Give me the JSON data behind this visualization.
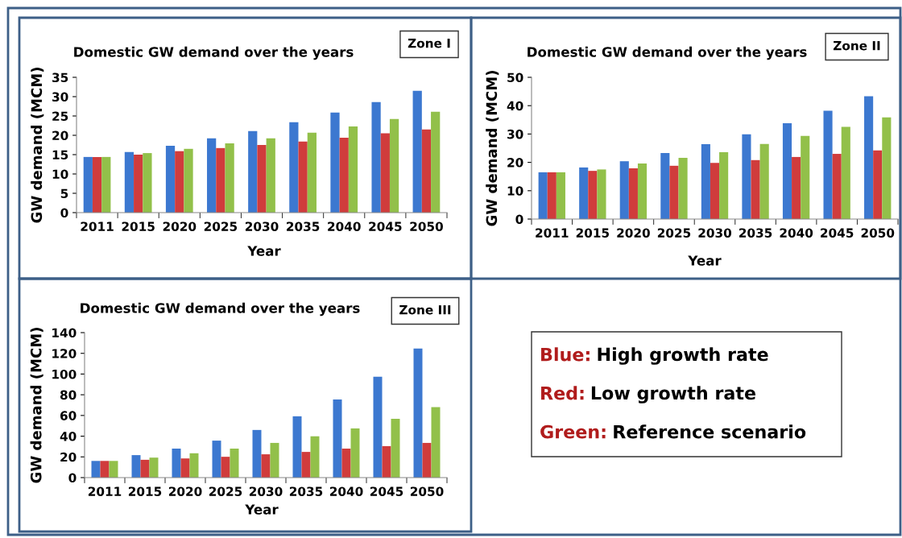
{
  "chart_data": [
    {
      "type": "bar",
      "title": "Domestic GW demand over the years",
      "annotations": [
        "Zone I"
      ],
      "xlabel": "Year",
      "ylabel": "GW demand (MCM)",
      "categories": [
        "2011",
        "2015",
        "2020",
        "2025",
        "2030",
        "2035",
        "2040",
        "2045",
        "2050"
      ],
      "series": [
        {
          "color": "#3c78d0",
          "values": [
            14.4,
            15.7,
            17.3,
            19.2,
            21.1,
            23.4,
            25.9,
            28.6,
            31.5
          ]
        },
        {
          "color": "#d03c3c",
          "values": [
            14.4,
            15.0,
            15.9,
            16.7,
            17.5,
            18.4,
            19.4,
            20.5,
            21.5
          ]
        },
        {
          "color": "#92c04a",
          "values": [
            14.4,
            15.4,
            16.5,
            17.9,
            19.2,
            20.7,
            22.3,
            24.2,
            26.1
          ]
        }
      ],
      "ylim": [
        0,
        35
      ],
      "yticks": [
        0,
        5,
        10,
        15,
        20,
        25,
        30,
        35
      ],
      "grid": false
    },
    {
      "type": "bar",
      "title": "Domestic GW demand over the years",
      "annotations": [
        "Zone II"
      ],
      "xlabel": "Year",
      "ylabel": "GW demand (MCM)",
      "categories": [
        "2011",
        "2015",
        "2020",
        "2025",
        "2030",
        "2035",
        "2040",
        "2045",
        "2050"
      ],
      "series": [
        {
          "color": "#3c78d0",
          "values": [
            16.5,
            18.2,
            20.4,
            23.3,
            26.4,
            29.9,
            33.8,
            38.2,
            43.3
          ]
        },
        {
          "color": "#d03c3c",
          "values": [
            16.5,
            17.0,
            17.9,
            18.8,
            19.8,
            20.8,
            21.9,
            23.0,
            24.2
          ]
        },
        {
          "color": "#92c04a",
          "values": [
            16.5,
            17.5,
            19.6,
            21.6,
            23.6,
            26.5,
            29.3,
            32.5,
            35.9
          ]
        }
      ],
      "ylim": [
        0,
        50
      ],
      "yticks": [
        0,
        10,
        20,
        30,
        40,
        50
      ],
      "grid": false
    },
    {
      "type": "bar",
      "title": "Domestic GW demand over the years",
      "annotations": [
        "Zone III"
      ],
      "xlabel": "Year",
      "ylabel": "GW demand (MCM)",
      "categories": [
        "2011",
        "2015",
        "2020",
        "2025",
        "2030",
        "2035",
        "2040",
        "2045",
        "2050"
      ],
      "series": [
        {
          "color": "#3c78d0",
          "values": [
            16.1,
            21.7,
            28,
            35.7,
            46,
            59.2,
            75.5,
            97.5,
            124.7
          ]
        },
        {
          "color": "#d03c3c",
          "values": [
            16.1,
            17.2,
            18.5,
            20.1,
            22.5,
            24.8,
            28,
            30.4,
            33.5
          ]
        },
        {
          "color": "#92c04a",
          "values": [
            16.1,
            19.3,
            23.5,
            28,
            33.5,
            39.9,
            47.5,
            56.8,
            68.1
          ]
        }
      ],
      "ylim": [
        0,
        140
      ],
      "yticks": [
        0,
        20,
        40,
        60,
        80,
        100,
        120,
        140
      ],
      "grid": false
    },
    {
      "type": "other",
      "annotations": [
        "Blue: High growth rate",
        "Red: Low growth rate",
        "Green: Reference scenario"
      ]
    }
  ]
}
